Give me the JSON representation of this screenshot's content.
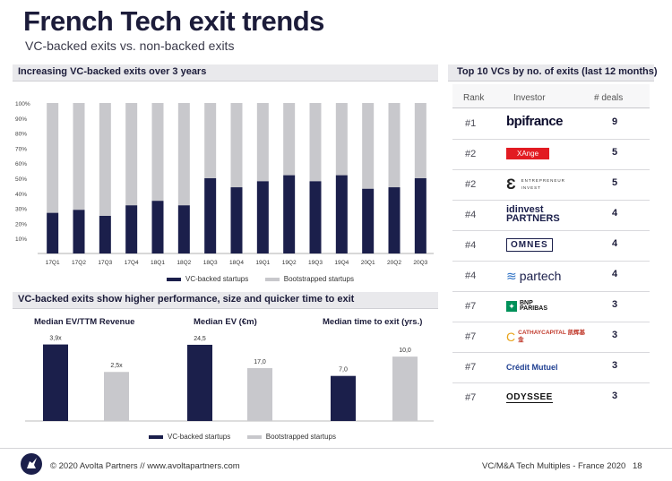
{
  "header": {
    "title": "French Tech exit trends",
    "subtitle": "VC-backed exits vs. non-backed exits"
  },
  "colors": {
    "navy": "#1b1f4b",
    "gray": "#c8c8cc",
    "accent": "#e21b22"
  },
  "sections": {
    "main_chart_title": "Increasing VC-backed exits over 3 years",
    "performance_title": "VC-backed exits show higher performance, size and quicker time to exit",
    "top_vcs_title": "Top 10 VCs by no. of exits (last 12 months)"
  },
  "chart_data": [
    {
      "type": "bar",
      "stacked": true,
      "title": "Increasing VC-backed exits over 3 years",
      "categories": [
        "17Q1",
        "17Q2",
        "17Q3",
        "17Q4",
        "18Q1",
        "18Q2",
        "18Q3",
        "18Q4",
        "19Q1",
        "19Q2",
        "19Q3",
        "19Q4",
        "20Q1",
        "20Q2",
        "20Q3"
      ],
      "series": [
        {
          "name": "VC-backed startups",
          "values": [
            27,
            29,
            25,
            32,
            35,
            32,
            50,
            44,
            48,
            52,
            48,
            52,
            43,
            44,
            50
          ]
        },
        {
          "name": "Bootstrapped startups",
          "values": [
            73,
            71,
            75,
            68,
            65,
            68,
            50,
            56,
            52,
            48,
            52,
            48,
            57,
            56,
            50
          ]
        }
      ],
      "ylim": [
        0,
        100
      ],
      "yticks": [
        "100%",
        "90%",
        "80%",
        "70%",
        "60%",
        "50%",
        "40%",
        "30%",
        "20%",
        "10%"
      ],
      "ytick_values": [
        100,
        90,
        80,
        70,
        60,
        50,
        40,
        30,
        20,
        10
      ],
      "legend": [
        "VC-backed startups",
        "Bootstrapped startups"
      ]
    },
    {
      "type": "bar",
      "title": "Median EV/TTM Revenue",
      "categories": [
        "VC-backed startups",
        "Bootstrapped startups"
      ],
      "values": [
        3.9,
        2.5
      ],
      "labels": [
        "3,9x",
        "2,5x"
      ],
      "ylim": [
        0,
        4.2
      ]
    },
    {
      "type": "bar",
      "title": "Median EV (€m)",
      "categories": [
        "VC-backed startups",
        "Bootstrapped startups"
      ],
      "values": [
        24.5,
        17.0
      ],
      "labels": [
        "24,5",
        "17,0"
      ],
      "ylim": [
        0,
        26.5
      ]
    },
    {
      "type": "bar",
      "title": "Median time to exit (yrs.)",
      "categories": [
        "VC-backed startups",
        "Bootstrapped startups"
      ],
      "values": [
        7.0,
        10.0
      ],
      "labels": [
        "7,0",
        "10,0"
      ],
      "ylim": [
        0,
        12.8
      ]
    }
  ],
  "bottom_legend": [
    "VC-backed startups",
    "Bootstrapped startups"
  ],
  "top_vcs": {
    "headers": {
      "rank": "Rank",
      "investor": "Investor",
      "deals": "# deals"
    },
    "rows": [
      {
        "rank": "#1",
        "investor": "bpifrance",
        "deals": "9"
      },
      {
        "rank": "#2",
        "investor": "XAnge",
        "deals": "5"
      },
      {
        "rank": "#2",
        "investor": "ENTREPRENEUR INVEST",
        "deals": "5"
      },
      {
        "rank": "#4",
        "investor": "idinvest PARTNERS",
        "deals": "4"
      },
      {
        "rank": "#4",
        "investor": "OMNES",
        "deals": "4"
      },
      {
        "rank": "#4",
        "investor": "partech",
        "deals": "4"
      },
      {
        "rank": "#7",
        "investor": "BNP PARIBAS",
        "deals": "3"
      },
      {
        "rank": "#7",
        "investor": "CATHAYCAPITAL 凯辉基金",
        "deals": "3"
      },
      {
        "rank": "#7",
        "investor": "Crédit Mutuel",
        "deals": "3"
      },
      {
        "rank": "#7",
        "investor": "ODYSSEE",
        "deals": "3"
      }
    ]
  },
  "footer": {
    "copyright": "© 2020 Avolta Partners // www.avoltapartners.com",
    "right": "VC/M&A Tech Multiples - France 2020",
    "page": "18"
  },
  "icons": [
    "unicorn-logo-icon"
  ]
}
